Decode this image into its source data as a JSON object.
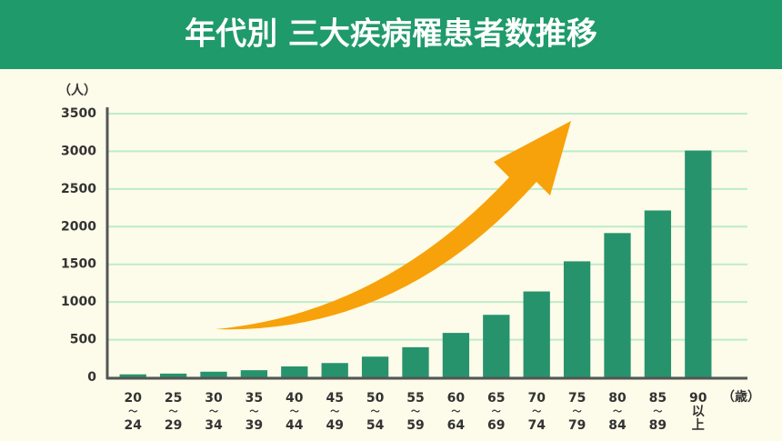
{
  "chart_data": {
    "type": "bar",
    "title": "年代別 三大疾病罹患者数推移",
    "y_unit": "（人）",
    "x_unit": "（歳）",
    "categories": [
      [
        "20",
        "〜",
        "24"
      ],
      [
        "25",
        "〜",
        "29"
      ],
      [
        "30",
        "〜",
        "34"
      ],
      [
        "35",
        "〜",
        "39"
      ],
      [
        "40",
        "〜",
        "44"
      ],
      [
        "45",
        "〜",
        "49"
      ],
      [
        "50",
        "〜",
        "54"
      ],
      [
        "55",
        "〜",
        "59"
      ],
      [
        "60",
        "〜",
        "64"
      ],
      [
        "65",
        "〜",
        "69"
      ],
      [
        "70",
        "〜",
        "74"
      ],
      [
        "75",
        "〜",
        "79"
      ],
      [
        "80",
        "〜",
        "84"
      ],
      [
        "85",
        "〜",
        "89"
      ],
      [
        "90",
        "以",
        "上"
      ]
    ],
    "values": [
      40,
      50,
      75,
      95,
      145,
      190,
      275,
      400,
      590,
      830,
      1140,
      1540,
      1915,
      2215,
      3010
    ],
    "color": "#27936d",
    "ylim": [
      0,
      3500
    ],
    "yticks": [
      0,
      500,
      1000,
      1500,
      2000,
      2500,
      3000,
      3500
    ],
    "grid": true
  }
}
